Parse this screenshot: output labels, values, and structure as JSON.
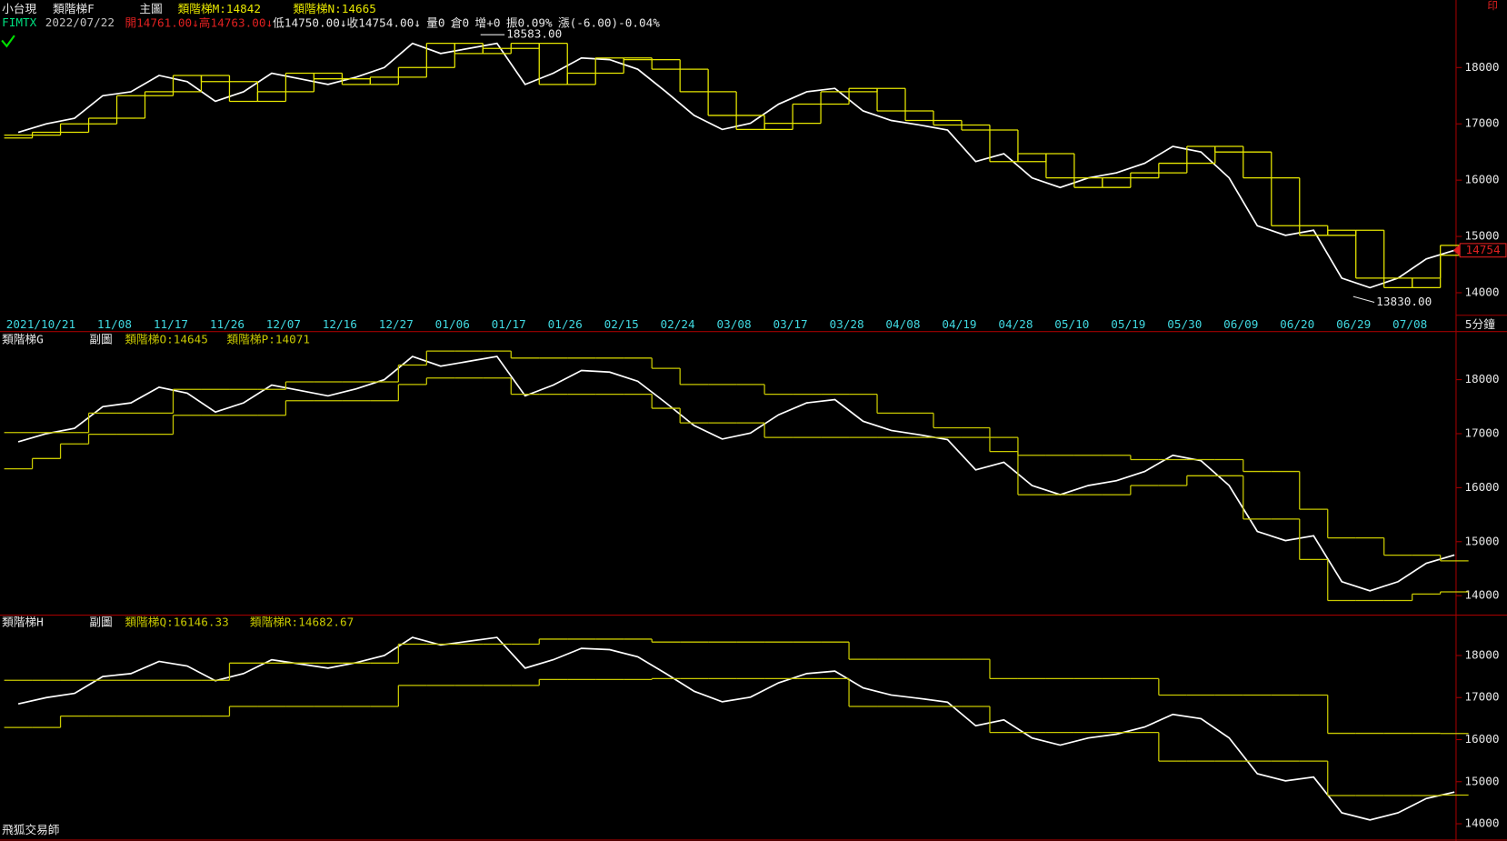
{
  "chart_data": [
    {
      "type": "line",
      "header": [
        "小台現",
        "類階梯F",
        "主圖"
      ],
      "symbol": "FIMTX",
      "date": "2022/07/22",
      "quote": [
        {
          "text": "開14761.00↓",
          "color": "#e02020"
        },
        {
          "text": "高14763.00↓",
          "color": "#e02020"
        },
        {
          "text": "低14750.00↓",
          "color": "#e8e8e8"
        },
        {
          "text": "收14754.00↓",
          "color": "#e8e8e8"
        },
        {
          "text": "量0",
          "color": "#e8e8e8"
        },
        {
          "text": "倉0",
          "color": "#e8e8e8"
        },
        {
          "text": "增+0",
          "color": "#e8e8e8"
        },
        {
          "text": "振0.09%",
          "color": "#e8e8e8"
        },
        {
          "text": "漲(-6.00)-0.04%",
          "color": "#e8e8e8"
        }
      ],
      "corner_mark": "印",
      "interval": "5分鐘",
      "annotations": [
        {
          "value": 18583,
          "label": "18583.00"
        },
        {
          "value": 13830,
          "label": "13830.00"
        }
      ],
      "last_price": 14754,
      "categories": [
        null,
        null,
        "2021/10/21",
        null,
        "11/08",
        null,
        "11/17",
        null,
        "11/26",
        null,
        "12/07",
        null,
        "12/16",
        null,
        "12/27",
        null,
        "01/06",
        null,
        "01/17",
        null,
        "01/26",
        null,
        "02/15",
        null,
        "02/24",
        null,
        "03/08",
        null,
        "03/17",
        null,
        "03/28",
        null,
        "04/08",
        null,
        "04/19",
        null,
        "04/28",
        null,
        "05/10",
        null,
        "05/19",
        null,
        "05/30",
        null,
        "06/09",
        null,
        "06/20",
        null,
        "06/29",
        null,
        "07/08",
        null
      ],
      "ylim": [
        13600,
        19200
      ],
      "yticks": [
        14000,
        15000,
        16000,
        17000,
        18000
      ],
      "series": [
        {
          "color": "#ffffff",
          "values": [
            16850,
            17000,
            17100,
            17500,
            17570,
            17860,
            17750,
            17400,
            17570,
            17900,
            17800,
            17700,
            17830,
            18000,
            18430,
            18250,
            18340,
            18430,
            17700,
            17900,
            18170,
            18140,
            17970,
            17570,
            17150,
            16900,
            17010,
            17350,
            17570,
            17630,
            17230,
            17060,
            16980,
            16890,
            16330,
            16470,
            16040,
            15870,
            16040,
            16130,
            16300,
            16600,
            16500,
            16040,
            15190,
            15020,
            15110,
            14260,
            14090,
            14260,
            14600,
            14754
          ]
        },
        {
          "name": "類階梯M:14842",
          "color": "#e6e600",
          "step": true,
          "values": [
            16800,
            16850,
            17000,
            17100,
            17500,
            17570,
            17860,
            17750,
            17400,
            17570,
            17900,
            17800,
            17700,
            17830,
            18000,
            18430,
            18250,
            18340,
            18430,
            17700,
            17900,
            18170,
            18140,
            17970,
            17570,
            17150,
            16900,
            17010,
            17350,
            17570,
            17630,
            17230,
            17060,
            16980,
            16890,
            16330,
            16470,
            16040,
            15870,
            16040,
            16130,
            16300,
            16600,
            16500,
            16040,
            15190,
            15020,
            15110,
            14260,
            14090,
            14260,
            14842
          ]
        },
        {
          "name": "類階梯N:14665",
          "color": "#e6e600",
          "step": true,
          "values": [
            16750,
            16800,
            16850,
            17000,
            17100,
            17500,
            17570,
            17860,
            17750,
            17400,
            17570,
            17900,
            17800,
            17700,
            17830,
            18000,
            18430,
            18250,
            18340,
            18430,
            17700,
            17900,
            18170,
            18140,
            17970,
            17570,
            17150,
            16900,
            17010,
            17350,
            17570,
            17630,
            17230,
            17060,
            16980,
            16890,
            16330,
            16470,
            16040,
            15870,
            16040,
            16130,
            16300,
            16600,
            16500,
            16040,
            15190,
            15020,
            15110,
            14260,
            14090,
            14665
          ]
        }
      ]
    },
    {
      "type": "line",
      "header": [
        "類階梯G",
        "副圖"
      ],
      "ylim": [
        13640,
        18890
      ],
      "yticks": [
        14000,
        15000,
        16000,
        17000,
        18000
      ],
      "series": [
        {
          "color": "#ffffff",
          "values": [
            16850,
            17000,
            17100,
            17500,
            17570,
            17860,
            17750,
            17400,
            17570,
            17900,
            17800,
            17700,
            17830,
            18000,
            18430,
            18250,
            18340,
            18430,
            17700,
            17900,
            18170,
            18140,
            17970,
            17570,
            17150,
            16900,
            17010,
            17350,
            17570,
            17630,
            17230,
            17060,
            16980,
            16890,
            16330,
            16470,
            16040,
            15870,
            16040,
            16130,
            16300,
            16600,
            16500,
            16040,
            15190,
            15020,
            15110,
            14260,
            14090,
            14260,
            14600,
            14754
          ]
        },
        {
          "name": "類階梯O:14645",
          "color": "#c8c800",
          "step": true,
          "values": [
            17020,
            17020,
            17020,
            17380,
            17380,
            17380,
            17820,
            17820,
            17820,
            17820,
            17960,
            17960,
            17960,
            17960,
            18270,
            18530,
            18530,
            18530,
            18400,
            18400,
            18400,
            18400,
            18400,
            18210,
            17910,
            17910,
            17910,
            17730,
            17730,
            17730,
            17730,
            17380,
            17380,
            17110,
            17110,
            16670,
            16600,
            16600,
            16600,
            16600,
            16520,
            16520,
            16520,
            16520,
            16300,
            16300,
            15600,
            15070,
            15070,
            14750,
            14750,
            14645
          ]
        },
        {
          "name": "類階梯P:14071",
          "color": "#c8c800",
          "step": true,
          "values": [
            16350,
            16540,
            16810,
            16990,
            16990,
            16990,
            17340,
            17340,
            17340,
            17340,
            17610,
            17610,
            17610,
            17610,
            17910,
            18030,
            18030,
            18030,
            17730,
            17730,
            17730,
            17730,
            17730,
            17470,
            17200,
            17200,
            17200,
            16930,
            16930,
            16930,
            16930,
            16930,
            16930,
            16930,
            16930,
            16930,
            15870,
            15870,
            15870,
            15870,
            16040,
            16040,
            16220,
            16220,
            15420,
            15420,
            14670,
            13910,
            13910,
            13910,
            14030,
            14071
          ]
        }
      ]
    },
    {
      "type": "line",
      "header": [
        "類階梯H",
        "副圖"
      ],
      "footer": "飛狐交易師",
      "ylim": [
        13590,
        18960
      ],
      "yticks": [
        14000,
        15000,
        16000,
        17000,
        18000
      ],
      "series": [
        {
          "color": "#ffffff",
          "values": [
            16850,
            17000,
            17100,
            17500,
            17570,
            17860,
            17750,
            17400,
            17570,
            17900,
            17800,
            17700,
            17830,
            18000,
            18430,
            18250,
            18340,
            18430,
            17700,
            17900,
            18170,
            18140,
            17970,
            17570,
            17150,
            16900,
            17010,
            17350,
            17570,
            17630,
            17230,
            17060,
            16980,
            16890,
            16330,
            16470,
            16040,
            15870,
            16040,
            16130,
            16300,
            16600,
            16500,
            16040,
            15190,
            15020,
            15110,
            14260,
            14090,
            14260,
            14600,
            14754
          ]
        },
        {
          "name": "類階梯Q:16146.33",
          "color": "#c8c800",
          "step": true,
          "values": [
            17410,
            17410,
            17410,
            17410,
            17410,
            17410,
            17410,
            17410,
            17820,
            17820,
            17820,
            17820,
            17820,
            17820,
            18270,
            18270,
            18270,
            18270,
            18270,
            18390,
            18390,
            18390,
            18390,
            18320,
            18320,
            18320,
            18320,
            18320,
            18320,
            18320,
            17910,
            17910,
            17910,
            17910,
            17910,
            17450,
            17450,
            17450,
            17450,
            17450,
            17450,
            17060,
            17060,
            17060,
            17060,
            17060,
            17060,
            16150,
            16150,
            16150,
            16150,
            16146.33
          ]
        },
        {
          "name": "類階梯R:14682.67",
          "color": "#c8c800",
          "step": true,
          "values": [
            16290,
            16290,
            16560,
            16560,
            16560,
            16560,
            16560,
            16560,
            16790,
            16790,
            16790,
            16790,
            16790,
            16790,
            17290,
            17290,
            17290,
            17290,
            17290,
            17430,
            17430,
            17430,
            17430,
            17450,
            17450,
            17450,
            17450,
            17450,
            17450,
            17450,
            16790,
            16790,
            16790,
            16790,
            16790,
            16170,
            16170,
            16170,
            16170,
            16170,
            16170,
            15490,
            15490,
            15490,
            15490,
            15490,
            15490,
            14670,
            14670,
            14670,
            14670,
            14682.67
          ]
        }
      ]
    }
  ]
}
